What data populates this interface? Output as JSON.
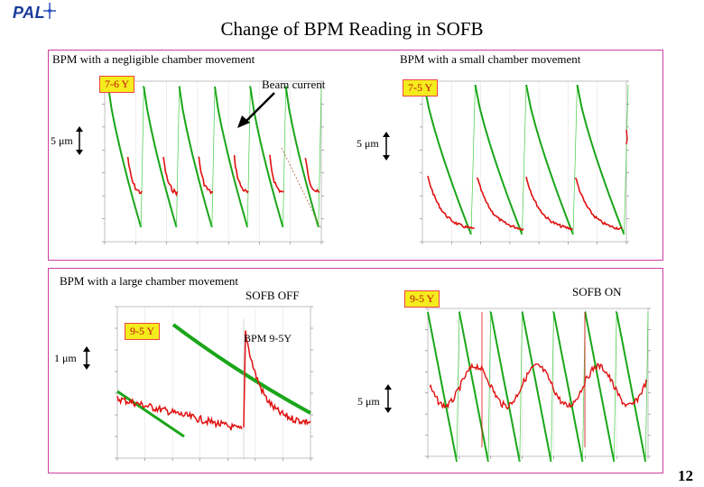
{
  "logo": {
    "text": "PAL"
  },
  "title": "Change of BPM Reading in SOFB",
  "top_panel": {
    "left_caption": "BPM with a negligible chamber movement",
    "right_caption": "BPM with a small chamber movement",
    "left_tag": "7-6 Y",
    "right_tag": "7-5 Y",
    "beam_current_label": "Beam current",
    "left_scale": "5 μm",
    "right_scale": "5 μm"
  },
  "bottom_panel": {
    "caption": "BPM with a large chamber movement",
    "sofb_off": "SOFB OFF",
    "sofb_on": "SOFB ON",
    "left_tag": "9-5 Y",
    "right_tag": "9-5 Y",
    "bpm_label": "BPM 9-5Y",
    "left_scale": "1 μm",
    "right_scale": "5 μm"
  },
  "page_number": "12",
  "colors": {
    "beam": "#1aa61a",
    "bpm": "#e01010",
    "frame": "#cc3fa5",
    "tag_bg": "#f4ec1c"
  }
}
